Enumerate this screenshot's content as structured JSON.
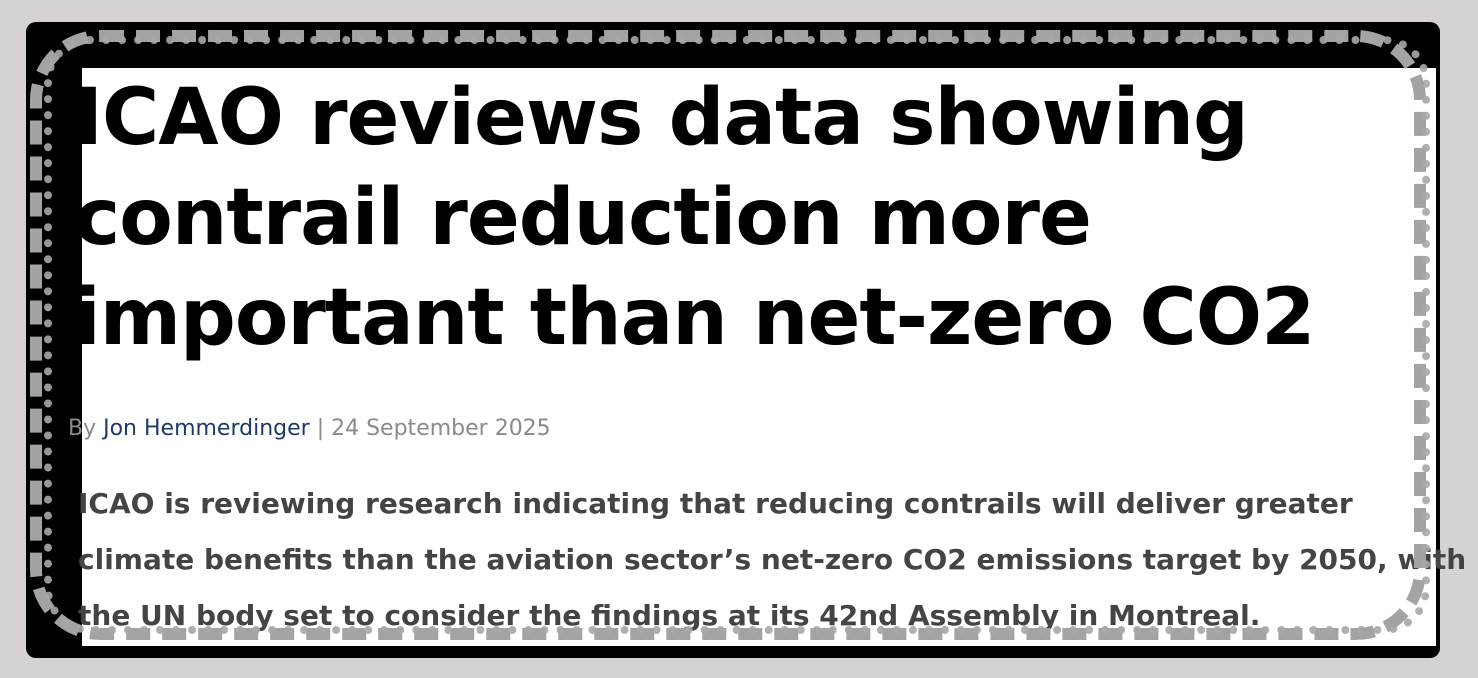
{
  "article": {
    "headline_lines": [
      "ICAO reviews data showing",
      "contrail reduction more",
      "important than net-zero CO2"
    ],
    "byline": {
      "prefix": "By ",
      "author": "Jon Hemmerdinger",
      "separator": " | ",
      "date": "24 September 2025"
    },
    "lede_lines": [
      "ICAO is reviewing research indicating that reducing contrails will deliver greater",
      "climate benefits than the aviation sector’s net-zero CO2 emissions target by 2050, with",
      "the UN body set to consider the findings at its 42nd Assembly in Montreal."
    ]
  }
}
